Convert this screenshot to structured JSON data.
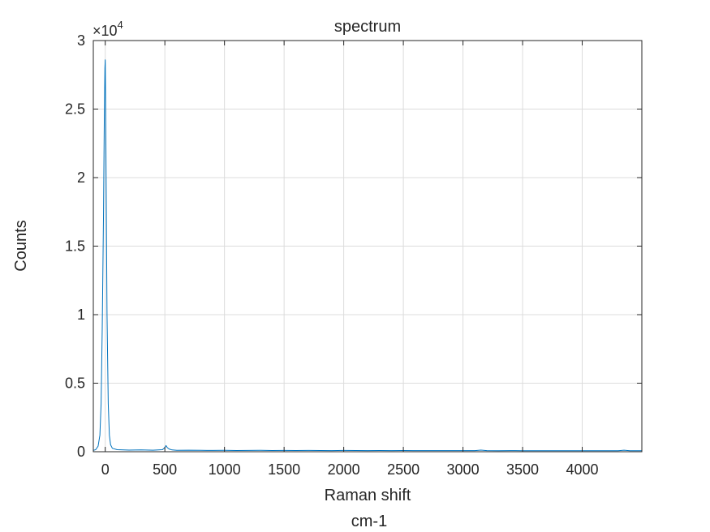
{
  "chart_data": {
    "type": "line",
    "title": "spectrum",
    "xlabel": "Raman shift",
    "xlabel_unit": "cm-1",
    "ylabel": "Counts",
    "y_exponent_label": "×10",
    "y_exponent": "4",
    "xlim": [
      -100,
      4500
    ],
    "ylim": [
      0,
      30000
    ],
    "xticks": [
      0,
      500,
      1000,
      1500,
      2000,
      2500,
      3000,
      3500,
      4000
    ],
    "xtick_labels": [
      "0",
      "500",
      "1000",
      "1500",
      "2000",
      "2500",
      "3000",
      "3500",
      "4000"
    ],
    "yticks": [
      0,
      5000,
      10000,
      15000,
      20000,
      25000,
      30000
    ],
    "ytick_labels": [
      "0",
      "0.5",
      "1",
      "1.5",
      "2",
      "2.5",
      "3"
    ],
    "grid": true,
    "line_color": "#0072bd",
    "series": [
      {
        "x": [
          -100,
          -80,
          -60,
          -45,
          -35,
          -25,
          -15,
          -8,
          -3,
          0,
          3,
          8,
          15,
          25,
          35,
          45,
          60,
          100,
          200,
          300,
          400,
          480,
          500,
          510,
          520,
          535,
          560,
          600,
          700,
          800,
          900,
          1000,
          1100,
          1200,
          1300,
          1400,
          1500,
          1600,
          1700,
          1800,
          1900,
          2000,
          2100,
          2200,
          2300,
          2400,
          2500,
          2600,
          2700,
          2800,
          2900,
          3000,
          3100,
          3150,
          3200,
          3300,
          3400,
          3500,
          3600,
          3700,
          3800,
          3900,
          4000,
          4100,
          4200,
          4300,
          4350,
          4400,
          4450,
          4500
        ],
        "y": [
          100,
          150,
          400,
          1200,
          3500,
          9000,
          17000,
          24000,
          28000,
          28600,
          26000,
          19000,
          10000,
          3500,
          1200,
          500,
          250,
          150,
          120,
          130,
          110,
          150,
          300,
          450,
          300,
          200,
          130,
          100,
          110,
          100,
          95,
          100,
          90,
          95,
          100,
          90,
          95,
          90,
          95,
          90,
          85,
          95,
          90,
          85,
          90,
          85,
          90,
          85,
          80,
          85,
          80,
          85,
          80,
          120,
          80,
          75,
          80,
          75,
          70,
          75,
          70,
          75,
          70,
          75,
          70,
          70,
          110,
          70,
          70,
          70
        ]
      }
    ]
  }
}
